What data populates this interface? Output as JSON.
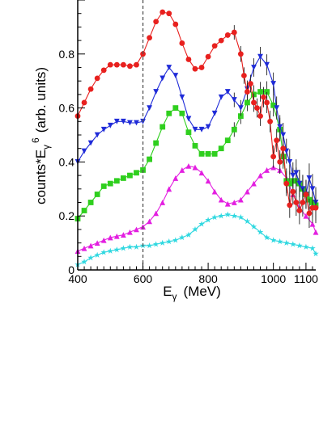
{
  "chart_data": {
    "type": "line",
    "xlabel": "E",
    "xlabel_sub": "γ",
    "xlabel_unit": "(MeV)",
    "ylabel": "counts*E",
    "ylabel_sub": "γ",
    "ylabel_sup": "6",
    "ylabel_unit": "(arb. units)",
    "xlim": [
      400,
      1130
    ],
    "ylim": [
      0,
      1.0
    ],
    "xticks": [
      400,
      600,
      800,
      1000,
      1100
    ],
    "xtick_labels": [
      "400",
      "600",
      "800",
      "1000",
      "1100"
    ],
    "yticks": [
      0,
      0.2,
      0.4,
      0.6,
      0.8
    ],
    "ytick_labels": [
      "0",
      "0.2",
      "0.4",
      "0.6",
      "0.8"
    ],
    "vline_x": 600,
    "grid": false,
    "series": [
      {
        "color": "#e8201e",
        "marker": "circle",
        "error_bars": true,
        "x": [
          400,
          420,
          440,
          460,
          480,
          500,
          520,
          540,
          560,
          580,
          600,
          620,
          640,
          660,
          680,
          700,
          720,
          740,
          760,
          780,
          800,
          820,
          840,
          860,
          880,
          900,
          910,
          920,
          930,
          940,
          950,
          960,
          970,
          980,
          990,
          1000,
          1010,
          1020,
          1030,
          1040,
          1050,
          1060,
          1070,
          1080,
          1090,
          1100,
          1110,
          1120,
          1130
        ],
        "y": [
          0.57,
          0.62,
          0.67,
          0.71,
          0.74,
          0.76,
          0.76,
          0.76,
          0.755,
          0.76,
          0.8,
          0.86,
          0.92,
          0.955,
          0.95,
          0.91,
          0.84,
          0.78,
          0.745,
          0.75,
          0.79,
          0.83,
          0.85,
          0.87,
          0.88,
          0.8,
          0.72,
          0.66,
          0.69,
          0.62,
          0.6,
          0.57,
          0.64,
          0.62,
          0.55,
          0.42,
          0.48,
          0.4,
          0.45,
          0.32,
          0.24,
          0.29,
          0.25,
          0.22,
          0.25,
          0.28,
          0.21,
          0.23,
          0.23
        ]
      },
      {
        "color": "#1f2bd8",
        "marker": "triangle-down",
        "error_bars": true,
        "x": [
          400,
          420,
          440,
          460,
          480,
          500,
          520,
          540,
          560,
          580,
          600,
          620,
          640,
          660,
          680,
          700,
          720,
          740,
          760,
          780,
          800,
          820,
          840,
          860,
          880,
          900,
          920,
          940,
          960,
          980,
          1000,
          1010,
          1020,
          1030,
          1040,
          1050,
          1060,
          1070,
          1080,
          1090,
          1100,
          1110,
          1120,
          1130
        ],
        "y": [
          0.4,
          0.44,
          0.47,
          0.5,
          0.52,
          0.535,
          0.55,
          0.55,
          0.545,
          0.545,
          0.55,
          0.6,
          0.66,
          0.71,
          0.75,
          0.72,
          0.64,
          0.56,
          0.52,
          0.52,
          0.53,
          0.58,
          0.64,
          0.66,
          0.63,
          0.6,
          0.67,
          0.75,
          0.79,
          0.76,
          0.69,
          0.6,
          0.53,
          0.5,
          0.44,
          0.4,
          0.35,
          0.36,
          0.32,
          0.3,
          0.28,
          0.34,
          0.3,
          0.25
        ]
      },
      {
        "color": "#2fcf1e",
        "marker": "square",
        "error_bars": true,
        "x": [
          400,
          420,
          440,
          460,
          480,
          500,
          520,
          540,
          560,
          580,
          600,
          620,
          640,
          660,
          680,
          700,
          720,
          740,
          760,
          780,
          800,
          820,
          840,
          860,
          880,
          900,
          920,
          940,
          960,
          980,
          1000,
          1020,
          1030,
          1040,
          1050,
          1060,
          1070,
          1080,
          1090,
          1100,
          1110,
          1120,
          1130
        ],
        "y": [
          0.19,
          0.22,
          0.25,
          0.28,
          0.31,
          0.32,
          0.33,
          0.34,
          0.35,
          0.36,
          0.37,
          0.41,
          0.47,
          0.53,
          0.58,
          0.6,
          0.58,
          0.51,
          0.46,
          0.43,
          0.43,
          0.43,
          0.45,
          0.48,
          0.52,
          0.57,
          0.62,
          0.65,
          0.66,
          0.66,
          0.61,
          0.52,
          0.42,
          0.33,
          0.32,
          0.33,
          0.33,
          0.32,
          0.3,
          0.28,
          0.26,
          0.25,
          0.24
        ]
      },
      {
        "color": "#e31fe0",
        "marker": "triangle-up",
        "error_bars": false,
        "x": [
          400,
          420,
          440,
          460,
          480,
          500,
          520,
          540,
          560,
          580,
          600,
          620,
          640,
          660,
          680,
          700,
          720,
          740,
          760,
          780,
          800,
          820,
          840,
          860,
          880,
          900,
          920,
          940,
          960,
          980,
          1000,
          1020,
          1040,
          1060,
          1080,
          1100,
          1120,
          1130
        ],
        "y": [
          0.07,
          0.08,
          0.09,
          0.1,
          0.11,
          0.12,
          0.125,
          0.13,
          0.14,
          0.15,
          0.16,
          0.18,
          0.21,
          0.25,
          0.3,
          0.34,
          0.37,
          0.385,
          0.38,
          0.36,
          0.33,
          0.29,
          0.26,
          0.245,
          0.25,
          0.26,
          0.29,
          0.32,
          0.35,
          0.37,
          0.38,
          0.37,
          0.34,
          0.28,
          0.23,
          0.2,
          0.17,
          0.14
        ]
      },
      {
        "color": "#2fd8e0",
        "marker": "star",
        "error_bars": false,
        "x": [
          400,
          420,
          440,
          460,
          480,
          500,
          520,
          540,
          560,
          580,
          600,
          620,
          640,
          660,
          680,
          700,
          720,
          740,
          760,
          780,
          800,
          820,
          840,
          860,
          880,
          900,
          920,
          940,
          960,
          980,
          1000,
          1020,
          1040,
          1060,
          1080,
          1100,
          1120,
          1130
        ],
        "y": [
          0.02,
          0.03,
          0.045,
          0.055,
          0.065,
          0.07,
          0.075,
          0.08,
          0.085,
          0.085,
          0.09,
          0.09,
          0.095,
          0.1,
          0.105,
          0.11,
          0.12,
          0.13,
          0.15,
          0.17,
          0.185,
          0.195,
          0.2,
          0.205,
          0.2,
          0.195,
          0.18,
          0.16,
          0.14,
          0.12,
          0.11,
          0.105,
          0.1,
          0.095,
          0.09,
          0.085,
          0.08,
          0.06
        ]
      }
    ]
  }
}
